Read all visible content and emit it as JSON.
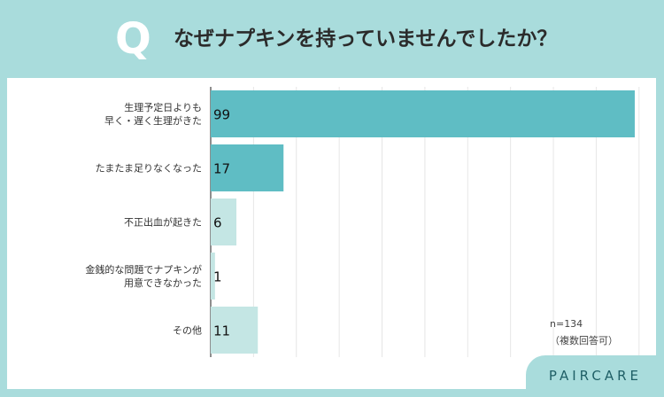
{
  "header": {
    "q_letter": "Q",
    "question": "なぜナプキンを持っていませんでしたか？"
  },
  "chart_data": {
    "type": "bar",
    "orientation": "horizontal",
    "categories": [
      [
        "生理予定日よりも",
        "早く・遅く生理がきた"
      ],
      [
        "たまたま足りなくなった"
      ],
      [
        "不正出血が起きた"
      ],
      [
        "金銭的な問題でナプキンが",
        "用意できなかった"
      ],
      [
        "その他"
      ]
    ],
    "values": [
      99,
      17,
      6,
      1,
      11
    ],
    "xlim": [
      0,
      105
    ],
    "grid": true,
    "colors": [
      "#5fbdc4",
      "#5fbdc4",
      "#c4e6e4",
      "#c4e6e4",
      "#c4e6e4"
    ],
    "note": [
      "n=134",
      "（複数回答可）"
    ]
  },
  "brand": "PAIRCARE"
}
